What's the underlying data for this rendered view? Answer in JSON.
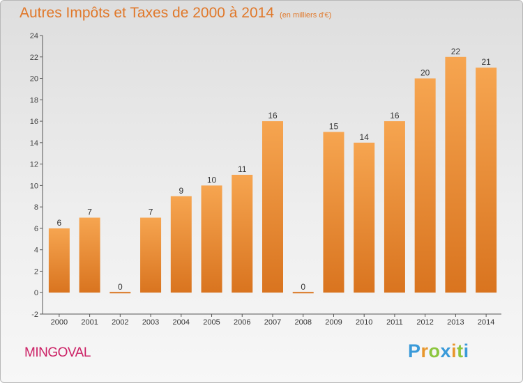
{
  "title": "Autres Impôts et Taxes de 2000 à 2014",
  "subtitle": "(en milliers d'€)",
  "commune": "MINGOVAL",
  "logo": {
    "letters": [
      "P",
      "r",
      "o",
      "x",
      "i",
      "t",
      "i"
    ],
    "colors": [
      "#3a9ad9",
      "#e8962c",
      "#8cc63f",
      "#3a9ad9",
      "#e8962c",
      "#8cc63f",
      "#3a9ad9"
    ]
  },
  "colors": {
    "bar_light": "#f6a550",
    "bar_dark": "#d9741f",
    "accent": "#e0782a",
    "commune": "#cc2266"
  },
  "chart_data": {
    "type": "bar",
    "title": "Autres Impôts et Taxes de 2000 à 2014",
    "subtitle": "(en milliers d'€)",
    "categories": [
      "2000",
      "2001",
      "2002",
      "2003",
      "2004",
      "2005",
      "2006",
      "2007",
      "2008",
      "2009",
      "2010",
      "2011",
      "2012",
      "2013",
      "2014"
    ],
    "values": [
      6,
      7,
      0,
      7,
      9,
      10,
      11,
      16,
      0,
      15,
      14,
      16,
      20,
      22,
      21
    ],
    "value_labels": [
      "6",
      "7",
      "0",
      "7",
      "9",
      "10",
      "11",
      "16",
      "0",
      "15",
      "14",
      "16",
      "20",
      "22",
      "21"
    ],
    "yticks": [
      "-2",
      "0",
      "2",
      "4",
      "6",
      "8",
      "10",
      "12",
      "14",
      "16",
      "18",
      "20",
      "22",
      "24"
    ],
    "ylim": [
      -2,
      24
    ],
    "xlabel": "",
    "ylabel": "",
    "grid": false,
    "legend": "none"
  }
}
